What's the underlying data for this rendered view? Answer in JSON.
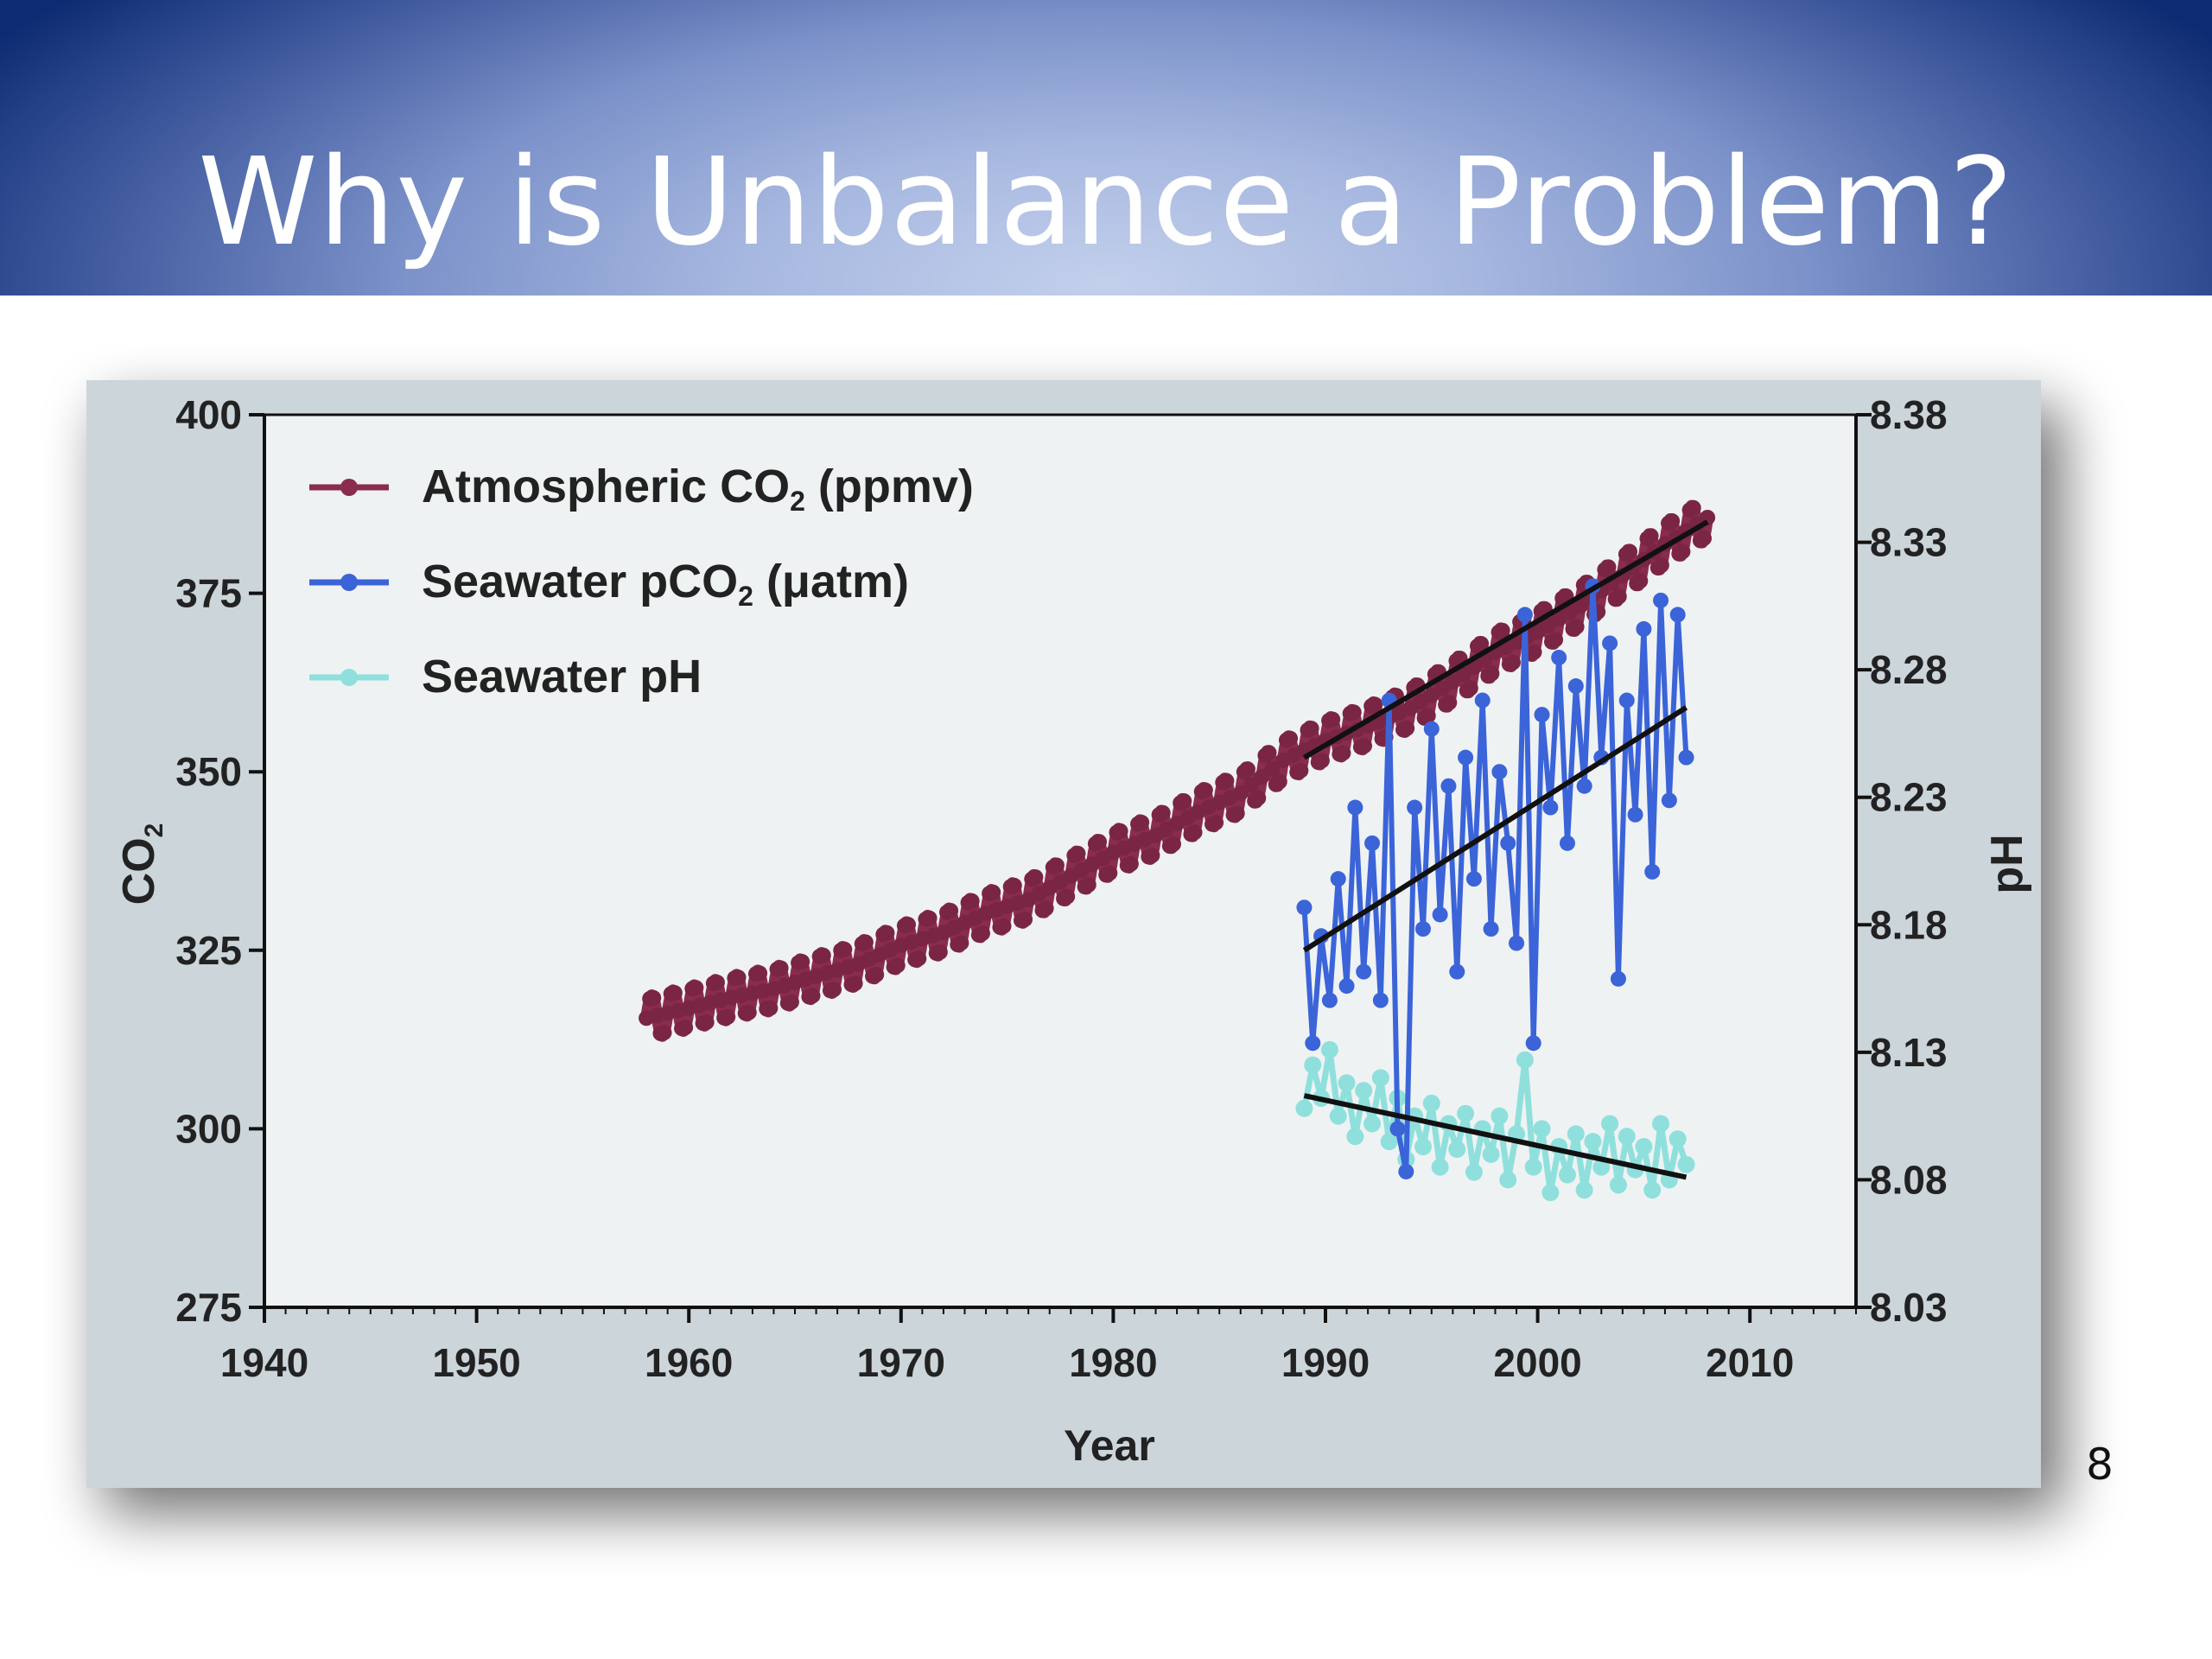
{
  "slide": {
    "title": "Why is Unbalance a Problem?",
    "number": "8"
  },
  "colors": {
    "co2": "#8a2c4e",
    "co2_marker": "#7a2544",
    "pco2": "#3b64d8",
    "ph": "#8fe0dc",
    "trend": "#111111",
    "plot_bg": "#eff2f3",
    "panel_bg": "#ccd5da"
  },
  "chart_data": {
    "type": "line",
    "xlabel": "Year",
    "ylabel_left": "CO2",
    "ylabel_right": "pH",
    "xlim": [
      1940,
      2015
    ],
    "ylim_left": [
      275,
      400
    ],
    "ylim_right": [
      8.03,
      8.38
    ],
    "x_ticks": [
      "1940",
      "1950",
      "1960",
      "1970",
      "1980",
      "1990",
      "2000",
      "2010"
    ],
    "y_ticks_left": [
      "275",
      "300",
      "325",
      "350",
      "375",
      "400"
    ],
    "y_ticks_right": [
      "8.03",
      "8.08",
      "8.13",
      "8.18",
      "8.23",
      "8.28",
      "8.33",
      "8.38"
    ],
    "grid": false,
    "legend_position": "top-left",
    "legend": [
      {
        "label": "Atmospheric CO",
        "sub": "2",
        "unit": " (ppmv)",
        "series": "co2"
      },
      {
        "label": "Seawater pCO",
        "sub": "2",
        "unit": " (μatm)",
        "series": "pco2"
      },
      {
        "label": "Seawater pH",
        "sub": "",
        "unit": "",
        "series": "ph"
      }
    ],
    "series": [
      {
        "key": "co2",
        "axis": "left",
        "x": [
          1958,
          1960,
          1962,
          1964,
          1966,
          1968,
          1970,
          1972,
          1974,
          1976,
          1978,
          1980,
          1982,
          1984,
          1986,
          1988,
          1990,
          1992,
          1994,
          1996,
          1998,
          2000,
          2002,
          2004,
          2006,
          2008
        ],
        "y": [
          315.5,
          316.9,
          318.4,
          319.6,
          321.4,
          323.1,
          325.7,
          327.5,
          330.2,
          332.1,
          335.4,
          338.7,
          341.1,
          344.4,
          347.0,
          351.6,
          354.4,
          356.4,
          358.9,
          362.6,
          366.7,
          369.6,
          373.2,
          377.5,
          381.9,
          385.6
        ],
        "seasonal_amplitude": 3
      },
      {
        "key": "pco2",
        "axis": "left",
        "x": [
          1989.0,
          1989.4,
          1989.8,
          1990.2,
          1990.6,
          1991.0,
          1991.4,
          1991.8,
          1992.2,
          1992.6,
          1993.0,
          1993.4,
          1993.8,
          1994.2,
          1994.6,
          1995.0,
          1995.4,
          1995.8,
          1996.2,
          1996.6,
          1997.0,
          1997.4,
          1997.8,
          1998.2,
          1998.6,
          1999.0,
          1999.4,
          1999.8,
          2000.2,
          2000.6,
          2001.0,
          2001.4,
          2001.8,
          2002.2,
          2002.6,
          2003.0,
          2003.4,
          2003.8,
          2004.2,
          2004.6,
          2005.0,
          2005.4,
          2005.8,
          2006.2,
          2006.6,
          2007.0
        ],
        "y": [
          331,
          312,
          327,
          318,
          335,
          320,
          345,
          322,
          340,
          318,
          360,
          300,
          294,
          345,
          328,
          356,
          330,
          348,
          322,
          352,
          335,
          360,
          328,
          350,
          340,
          326,
          372,
          312,
          358,
          345,
          366,
          340,
          362,
          348,
          376,
          352,
          368,
          321,
          360,
          344,
          370,
          336,
          374,
          346,
          372,
          352
        ],
        "trend": {
          "x": [
            1989,
            2007
          ],
          "y": [
            325,
            359
          ]
        }
      },
      {
        "key": "ph",
        "axis": "right",
        "x": [
          1989.0,
          1989.4,
          1989.8,
          1990.2,
          1990.6,
          1991.0,
          1991.4,
          1991.8,
          1992.2,
          1992.6,
          1993.0,
          1993.4,
          1993.8,
          1994.2,
          1994.6,
          1995.0,
          1995.4,
          1995.8,
          1996.2,
          1996.6,
          1997.0,
          1997.4,
          1997.8,
          1998.2,
          1998.6,
          1999.0,
          1999.4,
          1999.8,
          2000.2,
          2000.6,
          2001.0,
          2001.4,
          2001.8,
          2002.2,
          2002.6,
          2003.0,
          2003.4,
          2003.8,
          2004.2,
          2004.6,
          2005.0,
          2005.4,
          2005.8,
          2006.2,
          2006.6,
          2007.0
        ],
        "y": [
          8.108,
          8.125,
          8.112,
          8.131,
          8.105,
          8.118,
          8.097,
          8.115,
          8.102,
          8.12,
          8.095,
          8.112,
          8.088,
          8.105,
          8.093,
          8.11,
          8.085,
          8.102,
          8.092,
          8.106,
          8.083,
          8.1,
          8.09,
          8.105,
          8.08,
          8.098,
          8.127,
          8.085,
          8.1,
          8.075,
          8.093,
          8.082,
          8.098,
          8.076,
          8.095,
          8.085,
          8.102,
          8.078,
          8.097,
          8.084,
          8.093,
          8.076,
          8.102,
          8.08,
          8.096,
          8.086
        ],
        "trend": {
          "x": [
            1989,
            2007
          ],
          "y": [
            8.113,
            8.081
          ]
        }
      }
    ],
    "trend_lines": [
      {
        "series": "co2",
        "x": [
          1989,
          2008
        ],
        "y": [
          352,
          385
        ]
      }
    ]
  }
}
